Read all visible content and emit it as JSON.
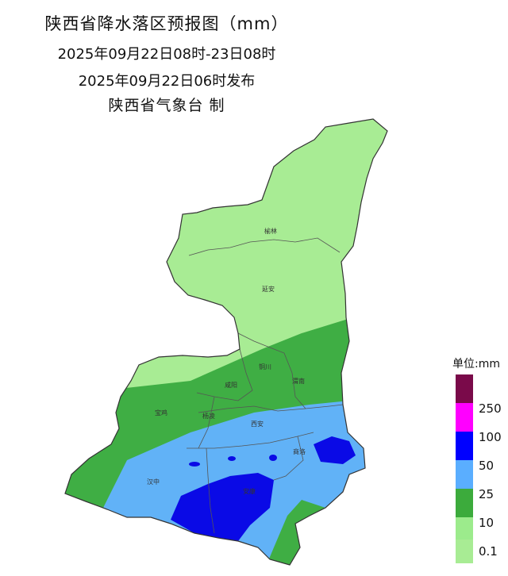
{
  "header": {
    "title": "陕西省降水落区预报图（mm）",
    "period": "2025年09月22日08时-23日08时",
    "issued": "2025年09月22日06时发布",
    "producer": "陕西省气象台 制"
  },
  "cities": {
    "yulin": "榆林",
    "yanan": "延安",
    "tongchuan": "铜川",
    "weinan": "渭南",
    "xianyang": "咸阳",
    "baoji": "宝鸡",
    "yangling": "杨凌",
    "xian": "西安",
    "shangluo": "商洛",
    "hanzhong": "汉中",
    "ankang": "安康"
  },
  "legend": {
    "title": "单位:mm",
    "levels": [
      {
        "label": "250",
        "color": "#7a0a4a"
      },
      {
        "label": "250",
        "color": "#ff00ff"
      },
      {
        "label": "100",
        "color": "#0000ff"
      },
      {
        "label": "50",
        "color": "#5aaeff"
      },
      {
        "label": "25",
        "color": "#3cab3c"
      },
      {
        "label": "10",
        "color": "#9ceb8c"
      },
      {
        "label": "0.1",
        "color": ""
      }
    ]
  },
  "colors": {
    "rain_0_1": "#a8ec94",
    "rain_10": "#3fae44",
    "rain_25": "#61b2f7",
    "rain_50": "#0a0ae6"
  }
}
